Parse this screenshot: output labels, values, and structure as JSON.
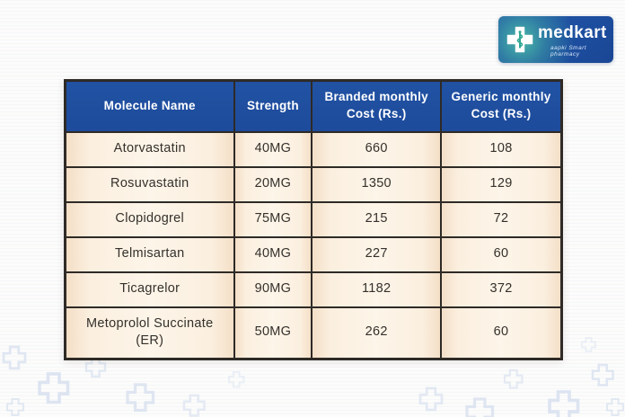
{
  "logo": {
    "brand": "medkart",
    "tagline": "aapki Smart pharmacy"
  },
  "colors": {
    "header_bg": "#1e4b9b",
    "header_text": "#ffffff",
    "cell_bg": "#fbeedd",
    "border": "#2e2a26",
    "logo_blue": "#2157a8",
    "logo_teal": "#3cb39c",
    "pattern": "#dbe3f0"
  },
  "table": {
    "columns": [
      "Molecule Name",
      "Strength",
      "Branded monthly Cost (Rs.)",
      "Generic monthly Cost (Rs.)"
    ],
    "rows": [
      [
        "Atorvastatin",
        "40MG",
        "660",
        "108"
      ],
      [
        "Rosuvastatin",
        "20MG",
        "1350",
        "129"
      ],
      [
        "Clopidogrel",
        "75MG",
        "215",
        "72"
      ],
      [
        "Telmisartan",
        "40MG",
        "227",
        "60"
      ],
      [
        "Ticagrelor",
        "90MG",
        "1182",
        "372"
      ],
      [
        "Metoprolol Succinate (ER)",
        "50MG",
        "262",
        "60"
      ]
    ]
  },
  "chart_data": {
    "type": "table",
    "columns": [
      "Molecule Name",
      "Strength",
      "Branded monthly Cost (Rs.)",
      "Generic monthly Cost (Rs.)"
    ],
    "rows": [
      [
        "Atorvastatin",
        "40MG",
        660,
        108
      ],
      [
        "Rosuvastatin",
        "20MG",
        1350,
        129
      ],
      [
        "Clopidogrel",
        "75MG",
        215,
        72
      ],
      [
        "Telmisartan",
        "40MG",
        227,
        60
      ],
      [
        "Ticagrelor",
        "90MG",
        1182,
        372
      ],
      [
        "Metoprolol Succinate (ER)",
        "50MG",
        262,
        60
      ]
    ]
  }
}
